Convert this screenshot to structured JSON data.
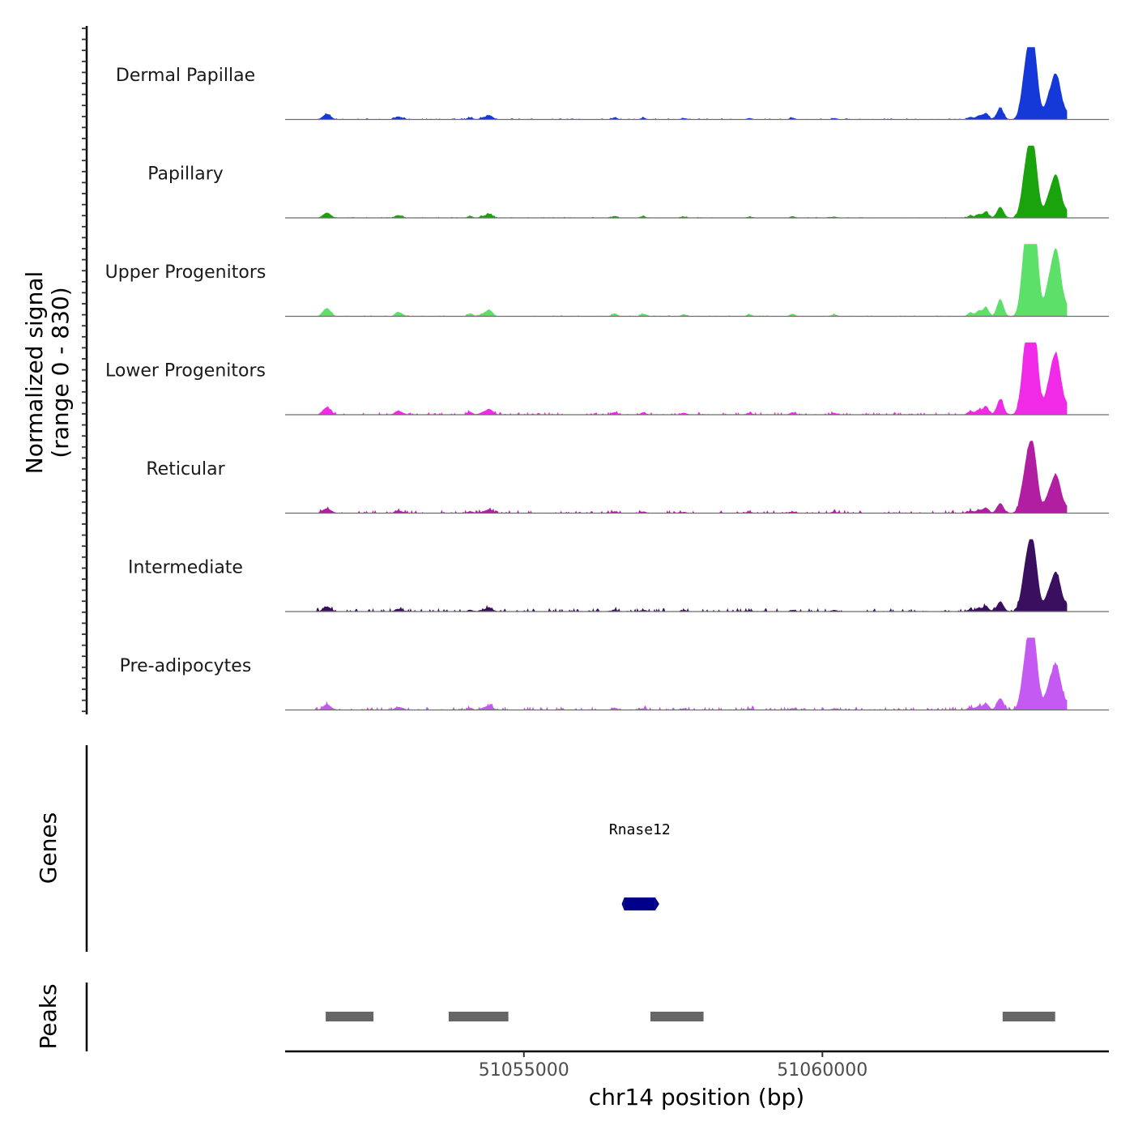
{
  "chart_data": {
    "type": "area",
    "title": "",
    "ylabel_line1": "Normalized signal",
    "ylabel_line2": "(range 0 - 830)",
    "xlabel": "chr14 position (bp)",
    "chromosome": "chr14",
    "y_range": [
      0,
      830
    ],
    "x_range": [
      51051000,
      51064800
    ],
    "x_ticks": [
      {
        "value": 51055000,
        "label": "51055000"
      },
      {
        "value": 51060000,
        "label": "51060000"
      }
    ],
    "peak_profile": [
      [
        51051640,
        30
      ],
      [
        51051700,
        60
      ],
      [
        51051760,
        30
      ],
      [
        51052880,
        40
      ],
      [
        51052960,
        20
      ],
      [
        51054100,
        30
      ],
      [
        51054300,
        25
      ],
      [
        51054400,
        50
      ],
      [
        51054460,
        30
      ],
      [
        51056520,
        30
      ],
      [
        51057000,
        25
      ],
      [
        51057680,
        20
      ],
      [
        51058780,
        20
      ],
      [
        51059500,
        25
      ],
      [
        51060200,
        20
      ],
      [
        51062480,
        40
      ],
      [
        51062620,
        60
      ],
      [
        51062740,
        100
      ],
      [
        51062980,
        180
      ],
      [
        51063400,
        620
      ],
      [
        51063500,
        760
      ],
      [
        51063560,
        560
      ],
      [
        51063770,
        200
      ],
      [
        51063880,
        470
      ],
      [
        51063960,
        360
      ],
      [
        51064100,
        80
      ]
    ],
    "series": [
      {
        "name": "Dermal Papillae",
        "color": "#1538d8",
        "peak_max": 560,
        "bg": 15
      },
      {
        "name": "Papillary",
        "color": "#1aa30d",
        "peak_max": 530,
        "bg": 12
      },
      {
        "name": "Upper Progenitors",
        "color": "#5ce06a",
        "peak_max": 830,
        "bg": 14
      },
      {
        "name": "Lower Progenitors",
        "color": "#f02ae6",
        "peak_max": 750,
        "bg": 32
      },
      {
        "name": "Reticular",
        "color": "#b21ea2",
        "peak_max": 470,
        "bg": 38
      },
      {
        "name": "Intermediate",
        "color": "#3b0f60",
        "peak_max": 480,
        "bg": 42
      },
      {
        "name": "Pre-adipocytes",
        "color": "#c45af2",
        "peak_max": 560,
        "bg": 40
      }
    ],
    "genes_label": "Genes",
    "genes": [
      {
        "name": "Rnase12",
        "start": 51056680,
        "end": 51057200,
        "color": "#00008b"
      }
    ],
    "peaks_label": "Peaks",
    "peaks": [
      {
        "start": 51051680,
        "end": 51052480
      },
      {
        "start": 51053740,
        "end": 51054740
      },
      {
        "start": 51057120,
        "end": 51058010
      },
      {
        "start": 51063020,
        "end": 51063900
      }
    ],
    "peak_color": "#666666"
  }
}
